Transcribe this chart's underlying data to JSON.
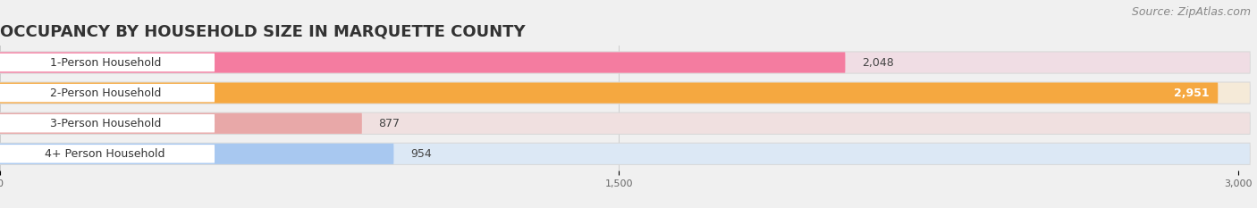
{
  "title": "OCCUPANCY BY HOUSEHOLD SIZE IN MARQUETTE COUNTY",
  "source": "Source: ZipAtlas.com",
  "categories": [
    "1-Person Household",
    "2-Person Household",
    "3-Person Household",
    "4+ Person Household"
  ],
  "values": [
    2048,
    2951,
    877,
    954
  ],
  "bar_colors": [
    "#f47ca0",
    "#f5a840",
    "#e8a8a8",
    "#a8c8f0"
  ],
  "bar_bg_colors": [
    "#f0dde4",
    "#f5ead8",
    "#f0e0e0",
    "#dce8f5"
  ],
  "xlim": [
    0,
    3000
  ],
  "xticks": [
    0,
    1500,
    3000
  ],
  "title_fontsize": 13,
  "source_fontsize": 9,
  "bar_label_fontsize": 9,
  "category_fontsize": 9,
  "background_color": "#f0f0f0",
  "bar_height": 0.68,
  "bar_gap": 0.1
}
